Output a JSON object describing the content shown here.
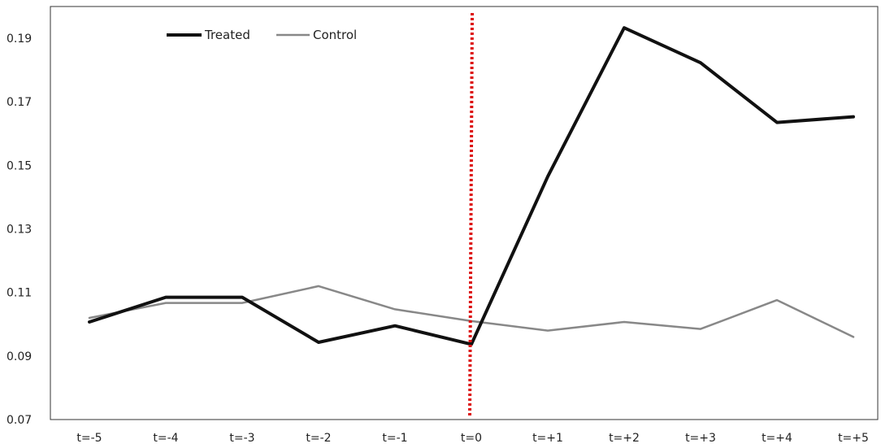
{
  "chart_data": {
    "type": "line",
    "categories": [
      "t=-5",
      "t=-4",
      "t=-3",
      "t=-2",
      "t=-1",
      "t=0",
      "t=+1",
      "t=+2",
      "t=+3",
      "t=+4",
      "t=+5"
    ],
    "ylim": [
      0.07,
      0.2
    ],
    "yticks": [
      0.07,
      0.09,
      0.11,
      0.13,
      0.15,
      0.17,
      0.19
    ],
    "ytick_labels": [
      "0.07",
      "0.09",
      "0.11",
      "0.13",
      "0.15",
      "0.17",
      "0.19"
    ],
    "grid": false,
    "legend_position": "top-left",
    "series": [
      {
        "name": "Treated",
        "color": "#111111",
        "values": [
          0.1007,
          0.1085,
          0.1085,
          0.0943,
          0.0995,
          0.0937,
          0.1465,
          0.1933,
          0.1823,
          0.1635,
          0.1653
        ]
      },
      {
        "name": "Control",
        "color": "#888888",
        "values": [
          0.102,
          0.1067,
          0.1067,
          0.112,
          0.1047,
          0.101,
          0.098,
          0.1007,
          0.0985,
          0.1076,
          0.096
        ]
      }
    ],
    "vertical_marker": {
      "x": "t=0",
      "color": "#dd1111",
      "style": "dotted"
    }
  }
}
